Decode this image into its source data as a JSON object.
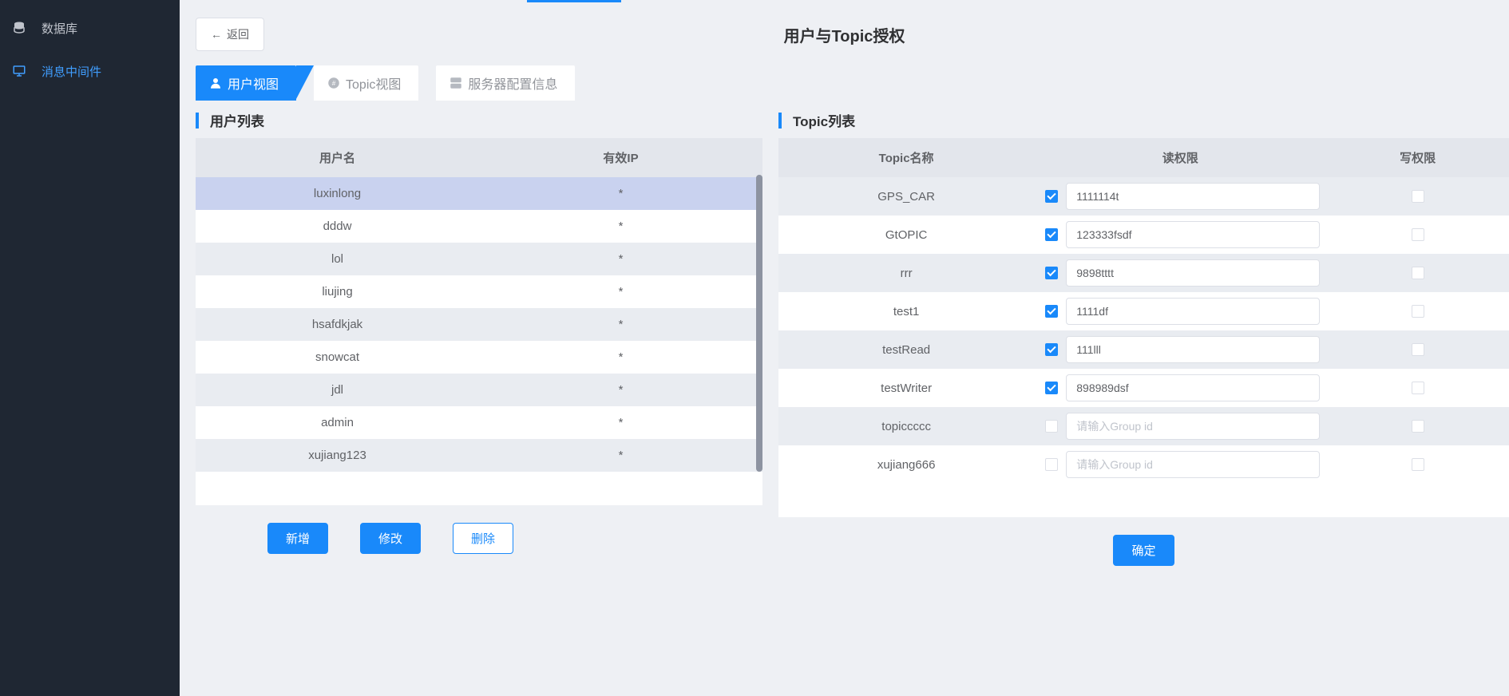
{
  "sidebar": {
    "items": [
      {
        "label": "数据库",
        "icon": "database-icon"
      },
      {
        "label": "消息中间件",
        "icon": "monitor-icon"
      }
    ],
    "active_index": 1
  },
  "back_label": "返回",
  "page_title": "用户与Topic授权",
  "tabs": [
    {
      "label": "用户视图",
      "icon": "user-icon"
    },
    {
      "label": "Topic视图",
      "icon": "hash-icon"
    },
    {
      "label": "服务器配置信息",
      "icon": "server-icon"
    }
  ],
  "active_tab_index": 0,
  "user_panel": {
    "title": "用户列表",
    "columns": [
      "用户名",
      "有效IP"
    ],
    "rows": [
      {
        "username": "luxinlong",
        "ip": "*",
        "selected": true
      },
      {
        "username": "dddw",
        "ip": "*"
      },
      {
        "username": "lol",
        "ip": "*"
      },
      {
        "username": "liujing",
        "ip": "*"
      },
      {
        "username": "hsafdkjak",
        "ip": "*"
      },
      {
        "username": "snowcat",
        "ip": "*"
      },
      {
        "username": "jdl",
        "ip": "*"
      },
      {
        "username": "admin",
        "ip": "*"
      },
      {
        "username": "xujiang123",
        "ip": "*"
      }
    ],
    "buttons": {
      "add": "新增",
      "edit": "修改",
      "delete": "删除"
    }
  },
  "topic_panel": {
    "title": "Topic列表",
    "columns": [
      "Topic名称",
      "读权限",
      "写权限"
    ],
    "group_placeholder": "请输入Group id",
    "rows": [
      {
        "name": "GPS_CAR",
        "read_checked": true,
        "group": "1111114t",
        "write_checked": false
      },
      {
        "name": "GtOPIC",
        "read_checked": true,
        "group": "123333fsdf",
        "write_checked": false
      },
      {
        "name": "rrr",
        "read_checked": true,
        "group": "9898tttt",
        "write_checked": false
      },
      {
        "name": "test1",
        "read_checked": true,
        "group": "1111df",
        "write_checked": false
      },
      {
        "name": "testRead",
        "read_checked": true,
        "group": "111lll",
        "write_checked": false
      },
      {
        "name": "testWriter",
        "read_checked": true,
        "group": "898989dsf",
        "write_checked": false
      },
      {
        "name": "topiccccc",
        "read_checked": false,
        "group": "",
        "write_checked": false
      },
      {
        "name": "xujiang666",
        "read_checked": false,
        "group": "",
        "write_checked": false
      }
    ],
    "confirm_label": "确定"
  },
  "colors": {
    "primary": "#1989fa",
    "sidebar_bg": "#1f2733",
    "page_bg": "#eef0f4",
    "header_bg": "#e3e6ec",
    "stripe_bg": "#e9ecf1",
    "selected_bg": "#c9d2ef",
    "text": "#606266",
    "text_dark": "#303133",
    "border": "#dcdfe6"
  }
}
